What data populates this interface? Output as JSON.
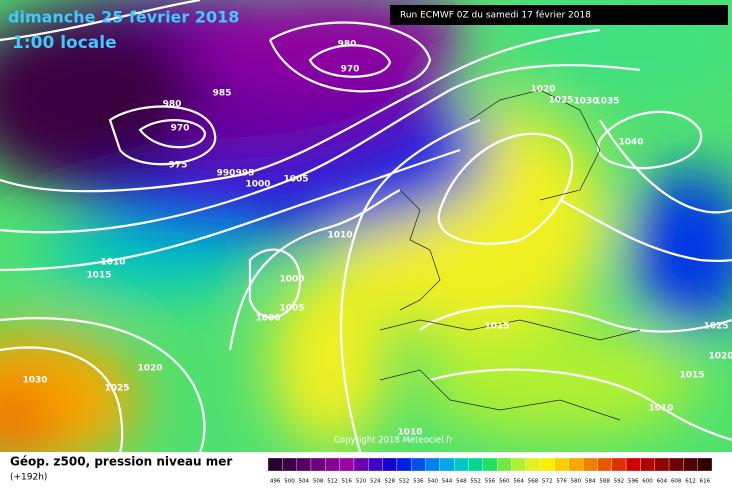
{
  "header": {
    "date": "dimanche 25 février 2018",
    "time": "1:00 locale",
    "run": "Run ECMWF 0Z du samedi 17 février 2018"
  },
  "copyright": "Copyright 2018 Meteociel.fr",
  "footer": {
    "title": "Géop. z500, pression niveau mer",
    "lead": "(+192h)"
  },
  "isobar_labels": [
    980,
    970,
    985,
    980,
    970,
    975,
    990,
    995,
    1000,
    1005,
    1010,
    1010,
    1015,
    1000,
    1005,
    1000,
    1020,
    1025,
    1030,
    1020,
    1025,
    1030,
    1035,
    1040,
    1015,
    1025,
    1020,
    1015,
    1010,
    1010
  ],
  "scale": {
    "labels": [
      496,
      500,
      504,
      508,
      512,
      516,
      520,
      524,
      528,
      532,
      536,
      540,
      544,
      548,
      552,
      556,
      560,
      564,
      568,
      572,
      576,
      580,
      584,
      588,
      592,
      596,
      600,
      604,
      608,
      612,
      616
    ],
    "colors": [
      "#2a0030",
      "#3c0046",
      "#55005f",
      "#6e0078",
      "#870090",
      "#9c00a0",
      "#6a00b0",
      "#4000c0",
      "#1800d0",
      "#0020e8",
      "#0050f0",
      "#0080f0",
      "#00a8e8",
      "#00c8c0",
      "#00d890",
      "#20e060",
      "#70e840",
      "#b0f030",
      "#e0f020",
      "#f8f000",
      "#f8d000",
      "#f8a800",
      "#f08000",
      "#e85800",
      "#e03000",
      "#d00000",
      "#b00000",
      "#900000",
      "#700000",
      "#500000",
      "#300000"
    ]
  }
}
